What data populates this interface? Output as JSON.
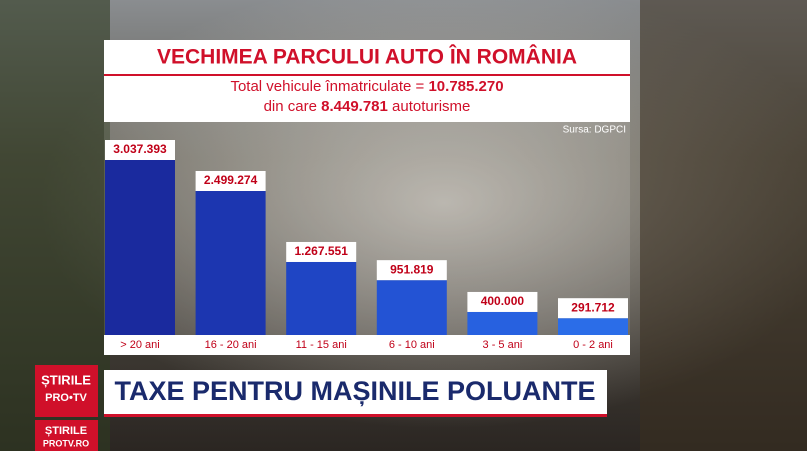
{
  "chart_data": {
    "type": "bar",
    "title": "VECHIMEA PARCULUI AUTO ÎN ROMÂNIA",
    "subtitle": [
      [
        "Total vehicule înmatriculate = ",
        "10.785.270"
      ],
      [
        "din care ",
        "8.449.781",
        " autoturisme"
      ]
    ],
    "source": "Sursa: DGPCI",
    "categories": [
      "> 20 ani",
      "16 - 20 ani",
      "11 - 15 ani",
      "6 - 10 ani",
      "3 - 5 ani",
      "0 - 2 ani"
    ],
    "values": [
      3037393,
      2499274,
      1267551,
      951819,
      400000,
      291712
    ],
    "value_labels": [
      "3.037.393",
      "2.499.274",
      "1.267.551",
      "951.819",
      "400.000",
      "291.712"
    ],
    "colors": [
      "#1a2a9e",
      "#1c36b0",
      "#1f45c4",
      "#2353d4",
      "#2761e0",
      "#2b6de8"
    ]
  },
  "banner": {
    "headline": "TAXE PENTRU MAȘINILE POLUANTE",
    "logo": [
      "ȘTIRILE",
      "PRO•TV"
    ],
    "web": [
      "ȘTIRILE",
      "PROTV.RO"
    ]
  }
}
